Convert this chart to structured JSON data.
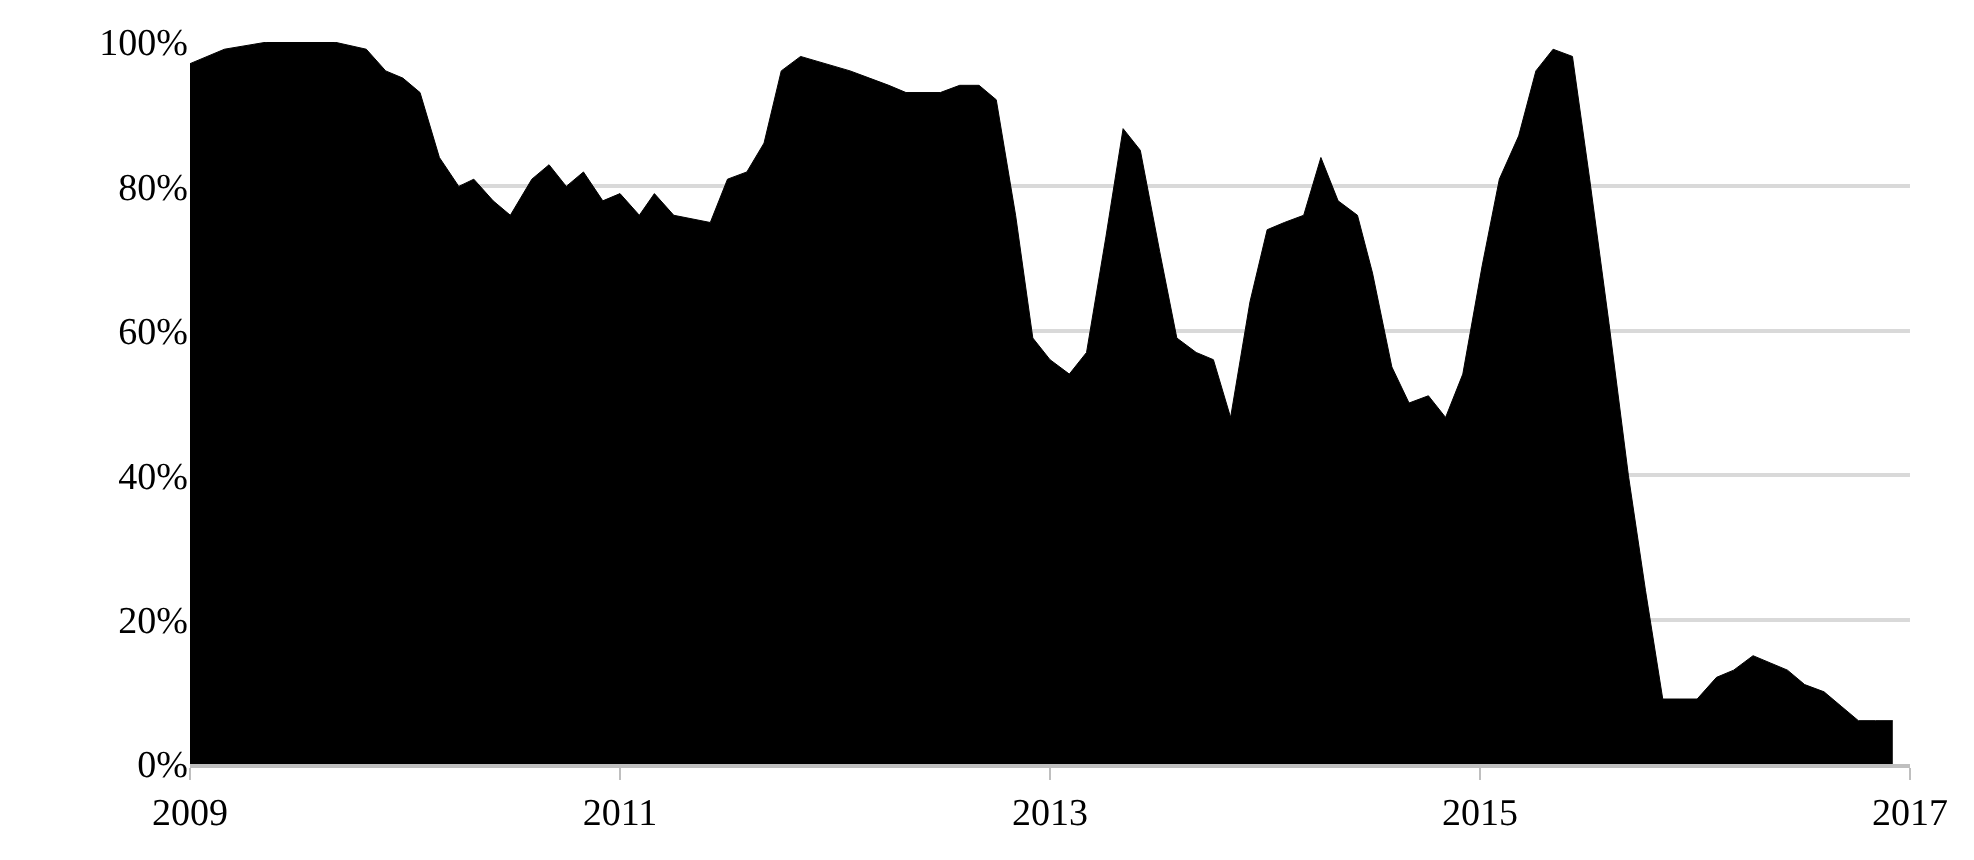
{
  "chart_data": {
    "type": "area",
    "x": [
      2009.0,
      2009.16,
      2009.36,
      2009.54,
      2009.67,
      2009.82,
      2009.91,
      2009.99,
      2010.07,
      2010.16,
      2010.25,
      2010.32,
      2010.41,
      2010.49,
      2010.59,
      2010.67,
      2010.75,
      2010.83,
      2010.92,
      2011.0,
      2011.09,
      2011.16,
      2011.25,
      2011.42,
      2011.5,
      2011.59,
      2011.67,
      2011.75,
      2011.84,
      2012.07,
      2012.16,
      2012.25,
      2012.33,
      2012.49,
      2012.58,
      2012.67,
      2012.75,
      2012.84,
      2012.92,
      2013.0,
      2013.09,
      2013.17,
      2013.26,
      2013.34,
      2013.42,
      2013.51,
      2013.59,
      2013.68,
      2013.76,
      2013.84,
      2013.93,
      2014.01,
      2014.09,
      2014.18,
      2014.26,
      2014.34,
      2014.43,
      2014.5,
      2014.59,
      2014.67,
      2014.76,
      2014.84,
      2014.92,
      2015.01,
      2015.09,
      2015.18,
      2015.26,
      2015.34,
      2015.43,
      2015.51,
      2015.6,
      2015.69,
      2015.77,
      2015.85,
      2015.93,
      2016.01,
      2016.1,
      2016.18,
      2016.27,
      2016.35,
      2016.43,
      2016.51,
      2016.6,
      2016.68,
      2016.76,
      2016.84,
      2016.92
    ],
    "series": [
      {
        "color": "#000000",
        "values": [
          97,
          99,
          100,
          100,
          100,
          99,
          96,
          95,
          93,
          84,
          80,
          81,
          78,
          76,
          81,
          83,
          80,
          82,
          78,
          79,
          76,
          79,
          76,
          75,
          81,
          82,
          86,
          96,
          98,
          96,
          95,
          94,
          93,
          93,
          94,
          94,
          92,
          76,
          59,
          56,
          54,
          57,
          73,
          88,
          85,
          71,
          59,
          57,
          56,
          48,
          64,
          74,
          75,
          76,
          84,
          78,
          76,
          68,
          55,
          50,
          51,
          48,
          54,
          69,
          81,
          87,
          96,
          99,
          98,
          81,
          61,
          40,
          24,
          9,
          9,
          9,
          12,
          13,
          15,
          14,
          13,
          11,
          10,
          8,
          6,
          6,
          6
        ]
      }
    ],
    "xlim": [
      2009,
      2017
    ],
    "xticks": [
      2009,
      2011,
      2013,
      2015,
      2017
    ],
    "ylim": [
      0,
      100
    ],
    "yticks": [
      {
        "value": 0,
        "label": "0%"
      },
      {
        "value": 20,
        "label": "20%"
      },
      {
        "value": 40,
        "label": "40%"
      },
      {
        "value": 60,
        "label": "60%"
      },
      {
        "value": 80,
        "label": "80%"
      },
      {
        "value": 100,
        "label": "100%"
      }
    ],
    "grid": "y"
  }
}
